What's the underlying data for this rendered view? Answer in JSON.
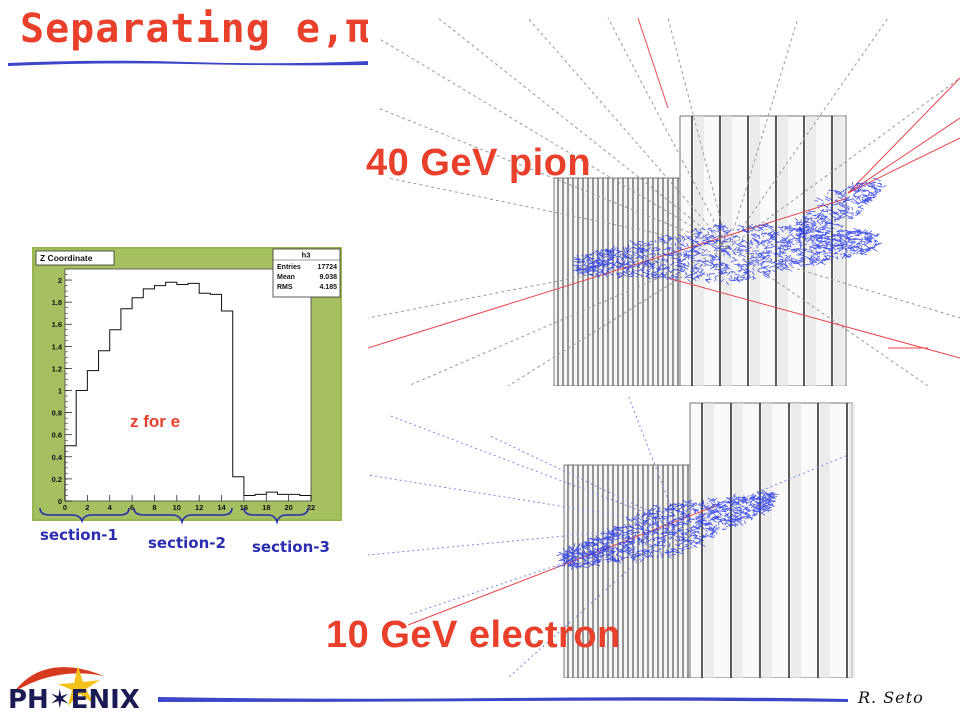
{
  "slide": {
    "title": "Separating e,π",
    "label_pion": "40 GeV pion",
    "label_electron": "10 GeV electron",
    "author": "R. Seto",
    "logo_text": "PH✶ENIX",
    "section_labels": [
      "section-1",
      "section-2",
      "section-3"
    ]
  },
  "chart_data": {
    "type": "bar",
    "title": "Z Coordinate",
    "histogram_name": "h3",
    "stats": [
      {
        "key": "Entries",
        "value": "17724"
      },
      {
        "key": "Mean",
        "value": "9.038"
      },
      {
        "key": "RMS",
        "value": "4.185"
      }
    ],
    "annotation": "z for e",
    "xlim": [
      0,
      22
    ],
    "ylim": [
      0,
      2.1
    ],
    "x_ticks": [
      "0",
      "2",
      "4",
      "6",
      "8",
      "10",
      "12",
      "14",
      "16",
      "18",
      "20",
      "22"
    ],
    "y_ticks": [
      "0",
      "0.2",
      "0.4",
      "0.6",
      "0.8",
      "1",
      "1.2",
      "1.4",
      "1.6",
      "1.8",
      "2"
    ],
    "bin_edges": [
      0,
      1,
      2,
      3,
      4,
      5,
      6,
      7,
      8,
      9,
      10,
      11,
      12,
      13,
      14,
      15,
      16,
      17,
      18,
      19,
      20,
      21,
      22
    ],
    "values": [
      0.5,
      1.0,
      1.18,
      1.36,
      1.55,
      1.74,
      1.84,
      1.92,
      1.95,
      1.98,
      1.96,
      1.97,
      1.88,
      1.87,
      1.72,
      0.22,
      0.05,
      0.06,
      0.08,
      0.06,
      0.06,
      0.05
    ]
  },
  "colors": {
    "title_red": "#e8402a",
    "section_blue": "#2a2db0",
    "rule_blue": "#3b46c8",
    "panel_bg": "#9ab64e",
    "plot_bg": "#ffffff"
  }
}
